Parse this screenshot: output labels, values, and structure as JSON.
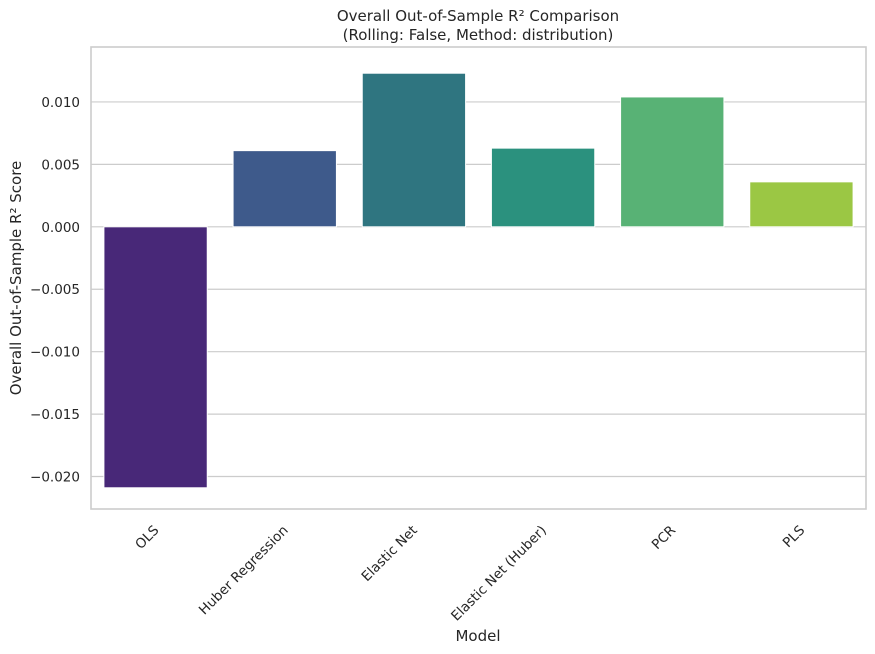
{
  "chart_data": {
    "type": "bar",
    "title_line1": "Overall Out-of-Sample R² Comparison",
    "title_line2": "(Rolling: False, Method: distribution)",
    "xlabel": "Model",
    "ylabel": "Overall Out-of-Sample R² Score",
    "categories": [
      "OLS",
      "Huber Regression",
      "Elastic Net",
      "Elastic Net (Huber)",
      "PCR",
      "PLS"
    ],
    "values": [
      -0.0209,
      0.0061,
      0.0123,
      0.0063,
      0.0104,
      0.0036
    ],
    "colors": [
      "#482878",
      "#3e5a8b",
      "#2f7580",
      "#2b917e",
      "#58b275",
      "#9bc744"
    ],
    "yticks": [
      -0.02,
      -0.015,
      -0.01,
      -0.005,
      0.0,
      0.005,
      0.01
    ],
    "ytick_labels": [
      "−0.020",
      "−0.015",
      "−0.010",
      "−0.005",
      "0.000",
      "0.005",
      "0.010"
    ],
    "ylim": [
      -0.0226,
      0.0144
    ],
    "grid": true,
    "x_tick_rotation": 45
  }
}
